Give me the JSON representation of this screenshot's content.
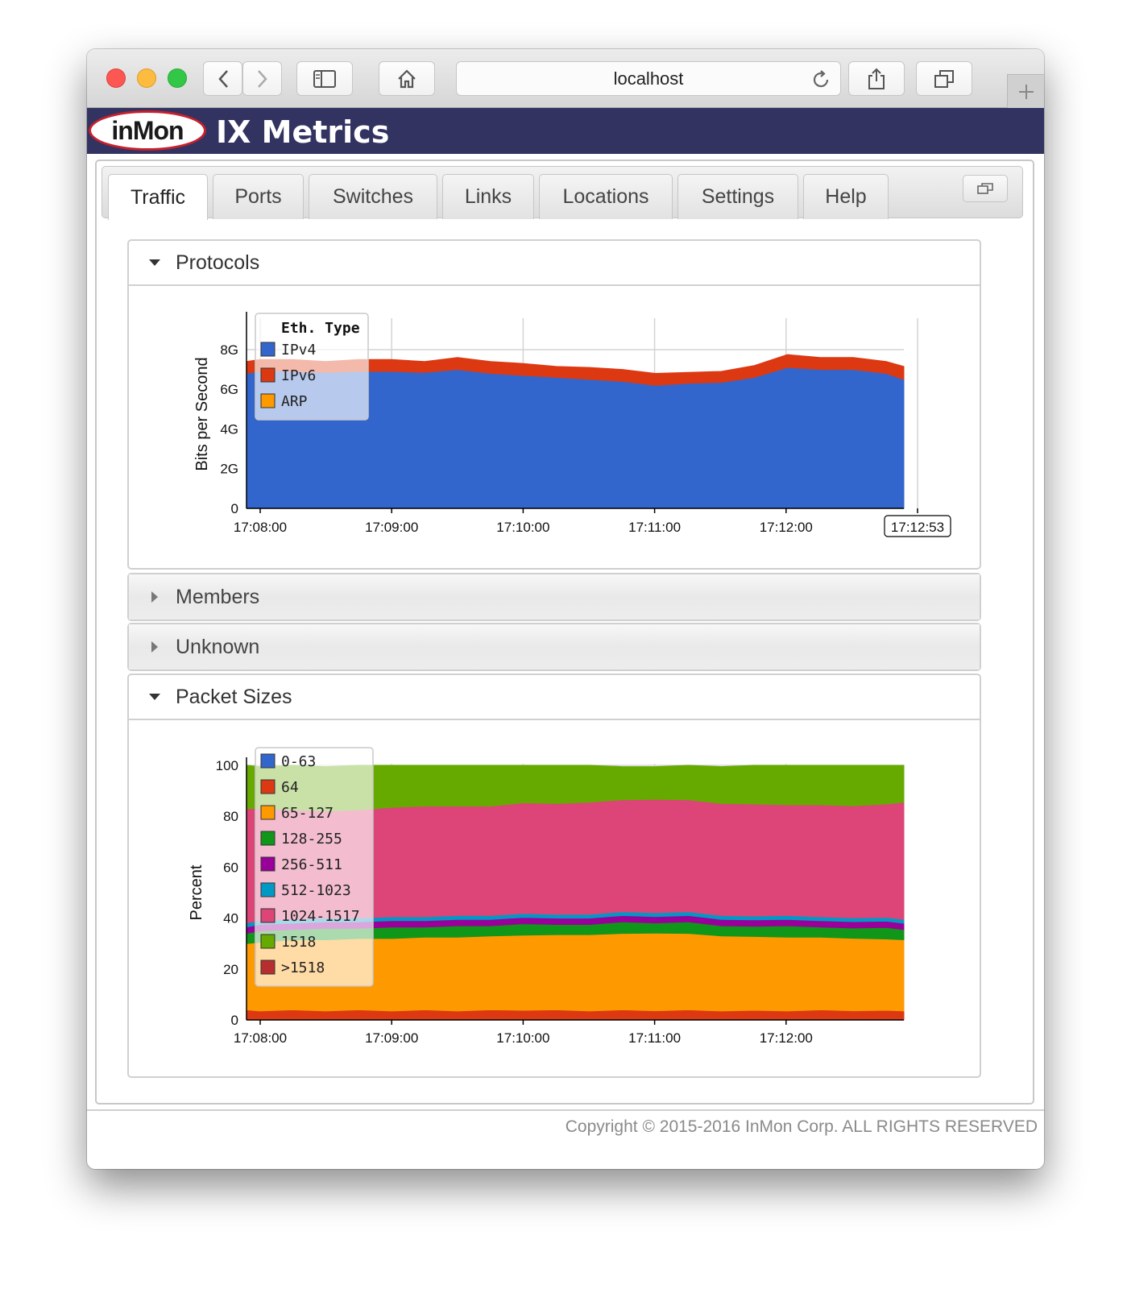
{
  "browser": {
    "url": "localhost"
  },
  "app": {
    "logo_text": "inMon",
    "title": "IX Metrics"
  },
  "tabs": [
    {
      "label": "Traffic",
      "active": true
    },
    {
      "label": "Ports",
      "active": false
    },
    {
      "label": "Switches",
      "active": false
    },
    {
      "label": "Links",
      "active": false
    },
    {
      "label": "Locations",
      "active": false
    },
    {
      "label": "Settings",
      "active": false
    },
    {
      "label": "Help",
      "active": false
    }
  ],
  "panels": {
    "protocols": {
      "title": "Protocols",
      "expanded": true
    },
    "members": {
      "title": "Members",
      "expanded": false
    },
    "unknown": {
      "title": "Unknown",
      "expanded": false
    },
    "packet_sizes": {
      "title": "Packet Sizes",
      "expanded": true
    }
  },
  "footer": {
    "copyright": "Copyright © 2015-2016 InMon Corp. ALL RIGHTS RESERVED"
  },
  "colors": {
    "header_bg": "#333361",
    "logo_border": "#c8202d"
  },
  "chart_data": [
    {
      "id": "protocols",
      "type": "area",
      "stacked": true,
      "ylabel": "Bits per Second",
      "yticks": [
        "0",
        "2G",
        "4G",
        "6G",
        "8G"
      ],
      "ylim": [
        0,
        9.5
      ],
      "xticks": [
        "17:08:00",
        "17:09:00",
        "17:10:00",
        "17:11:00",
        "17:12:00",
        "17:12:53"
      ],
      "x_current_label": "17:12:53",
      "grid": true,
      "legend_title": "Eth. Type",
      "legend_placement": "top-left",
      "x": [
        "17:07:54",
        "17:08:00",
        "17:08:15",
        "17:08:30",
        "17:08:45",
        "17:09:00",
        "17:09:15",
        "17:09:30",
        "17:09:45",
        "17:10:00",
        "17:10:15",
        "17:10:30",
        "17:10:45",
        "17:11:00",
        "17:11:15",
        "17:11:30",
        "17:11:45",
        "17:12:00",
        "17:12:15",
        "17:12:30",
        "17:12:45",
        "17:12:53"
      ],
      "series": [
        {
          "name": "IPv4",
          "color": "#3366cc",
          "values": [
            6.8,
            6.9,
            6.9,
            6.85,
            6.9,
            6.9,
            6.85,
            7.0,
            6.8,
            6.7,
            6.6,
            6.5,
            6.4,
            6.2,
            6.3,
            6.35,
            6.6,
            7.1,
            7.0,
            7.0,
            6.8,
            6.5
          ]
        },
        {
          "name": "IPv6",
          "color": "#dc3912",
          "values": [
            0.6,
            0.6,
            0.6,
            0.55,
            0.6,
            0.6,
            0.55,
            0.6,
            0.6,
            0.6,
            0.55,
            0.6,
            0.6,
            0.6,
            0.55,
            0.55,
            0.6,
            0.65,
            0.6,
            0.6,
            0.6,
            0.65
          ]
        },
        {
          "name": "ARP",
          "color": "#ff9900",
          "values": [
            0,
            0,
            0,
            0,
            0,
            0,
            0,
            0,
            0,
            0,
            0,
            0,
            0,
            0,
            0,
            0,
            0,
            0,
            0,
            0,
            0,
            0
          ]
        }
      ]
    },
    {
      "id": "packet_sizes",
      "type": "area",
      "stacked": true,
      "ylabel": "Percent",
      "yticks": [
        "0",
        "20",
        "40",
        "60",
        "80",
        "100"
      ],
      "ylim": [
        0,
        100
      ],
      "xticks": [
        "17:08:00",
        "17:09:00",
        "17:10:00",
        "17:11:00",
        "17:12:00"
      ],
      "grid": true,
      "legend_placement": "top-left",
      "x": [
        "17:07:54",
        "17:08:00",
        "17:08:15",
        "17:08:30",
        "17:08:45",
        "17:09:00",
        "17:09:15",
        "17:09:30",
        "17:09:45",
        "17:10:00",
        "17:10:15",
        "17:10:30",
        "17:10:45",
        "17:11:00",
        "17:11:15",
        "17:11:30",
        "17:11:45",
        "17:12:00",
        "17:12:15",
        "17:12:30",
        "17:12:45",
        "17:12:53"
      ],
      "series": [
        {
          "name": "0-63",
          "color": "#3366cc",
          "values": [
            0,
            0,
            0,
            0,
            0,
            0,
            0,
            0,
            0,
            0,
            0,
            0,
            0,
            0,
            0,
            0,
            0,
            0,
            0,
            0,
            0,
            0
          ]
        },
        {
          "name": "64",
          "color": "#dc3912",
          "values": [
            4,
            3.5,
            4,
            3.5,
            4,
            3.5,
            4,
            3.5,
            4,
            3.8,
            4,
            3.5,
            4,
            3.6,
            4,
            3.5,
            3.8,
            3.5,
            4,
            3.6,
            3.8,
            3.5
          ]
        },
        {
          "name": "65-127",
          "color": "#ff9900",
          "values": [
            26,
            27,
            27.5,
            28,
            28,
            28.5,
            28.5,
            29,
            29,
            29.5,
            29.5,
            30,
            30,
            30.5,
            30,
            29.5,
            29,
            29,
            28.5,
            28.5,
            28,
            28
          ]
        },
        {
          "name": "128-255",
          "color": "#109618",
          "values": [
            4,
            4.5,
            4,
            4.5,
            4,
            4.5,
            4,
            4.5,
            4,
            4.5,
            4,
            4,
            4.5,
            4,
            4.5,
            4,
            4,
            4.5,
            4,
            4,
            4.5,
            4
          ]
        },
        {
          "name": "256-511",
          "color": "#990099",
          "values": [
            2.5,
            2.5,
            2.5,
            2.5,
            2.5,
            2.5,
            2.5,
            2.5,
            2.5,
            2.5,
            2.5,
            2.5,
            2.5,
            2.5,
            2.5,
            2.5,
            2.5,
            2.5,
            2.5,
            2.5,
            2.5,
            2.5
          ]
        },
        {
          "name": "512-1023",
          "color": "#0099c6",
          "values": [
            1.5,
            1.5,
            1.5,
            1.5,
            1.5,
            1.5,
            1.5,
            1.5,
            1.5,
            1.5,
            1.5,
            1.5,
            1.5,
            1.5,
            1.5,
            1.5,
            1.5,
            1.5,
            1.5,
            1.5,
            1.5,
            1.5
          ]
        },
        {
          "name": "1024-1517",
          "color": "#dd4477",
          "values": [
            45,
            44,
            43,
            42,
            42.5,
            43,
            43.5,
            43,
            43,
            43.5,
            43.5,
            44,
            44,
            44.5,
            44,
            44,
            44,
            43.5,
            44,
            44,
            44.5,
            46
          ]
        },
        {
          "name": "1518",
          "color": "#66aa00",
          "values": [
            17,
            16.5,
            17.5,
            17.5,
            17.5,
            16.5,
            16,
            16,
            16,
            14.7,
            15,
            14.5,
            13,
            12.9,
            13.5,
            14.5,
            15.2,
            15.5,
            15.5,
            15.9,
            15.2,
            14.5
          ]
        },
        {
          "name": ">1518",
          "color": "#b82e2e",
          "values": [
            0,
            0,
            0,
            0,
            0,
            0,
            0,
            0,
            0,
            0,
            0,
            0,
            0,
            0,
            0,
            0,
            0,
            0,
            0,
            0,
            0,
            0
          ]
        }
      ]
    }
  ]
}
